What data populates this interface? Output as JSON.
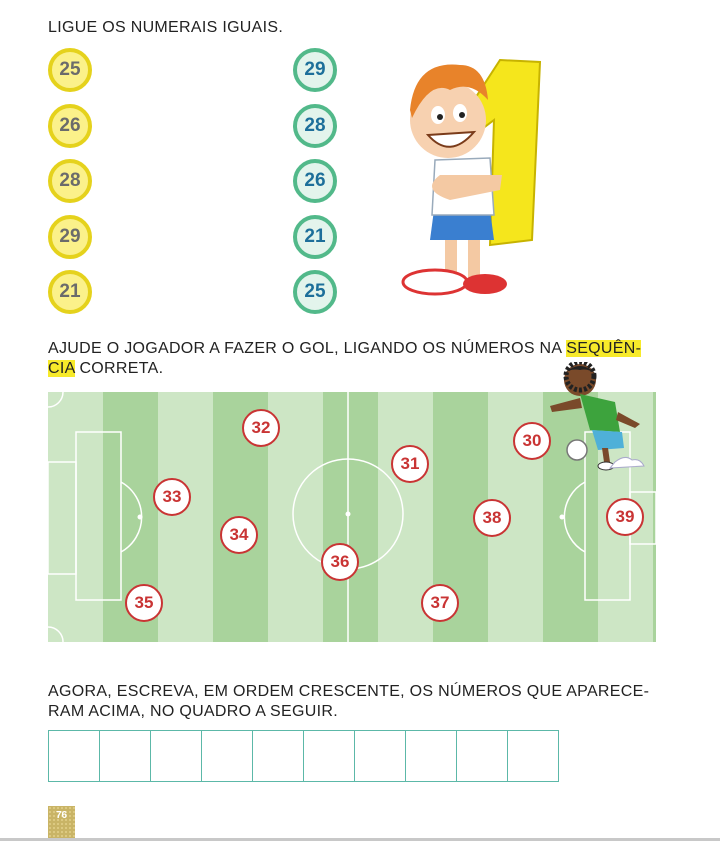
{
  "section1": {
    "instruction": "LIGUE OS NUMERAIS IGUAIS.",
    "left_numbers": [
      "25",
      "26",
      "28",
      "29",
      "21"
    ],
    "right_numbers": [
      "29",
      "28",
      "26",
      "21",
      "25"
    ]
  },
  "section2": {
    "instruction_part1": "AJUDE O JOGADOR A FAZER O GOL, LIGANDO OS NÚMEROS NA ",
    "instruction_highlight1": "SEQUÊN-",
    "instruction_highlight2": "CIA",
    "instruction_part2": " CORRETA.",
    "field_numbers": [
      "32",
      "30",
      "31",
      "33",
      "38",
      "39",
      "34",
      "36",
      "35",
      "37"
    ]
  },
  "section3": {
    "instruction": "AGORA, ESCREVA, EM ORDEM CRESCENTE, OS NÚMEROS QUE APARECE- RAM ACIMA, NO QUADRO A SEGUIR."
  },
  "page_number": "76",
  "colors": {
    "yellow_circle": "#fbf18a",
    "teal_circle": "#52b98a",
    "field_light": "#cde6c5",
    "field_dark": "#a9d39c",
    "number_red": "#c93434",
    "highlight": "#f7ea2a"
  }
}
